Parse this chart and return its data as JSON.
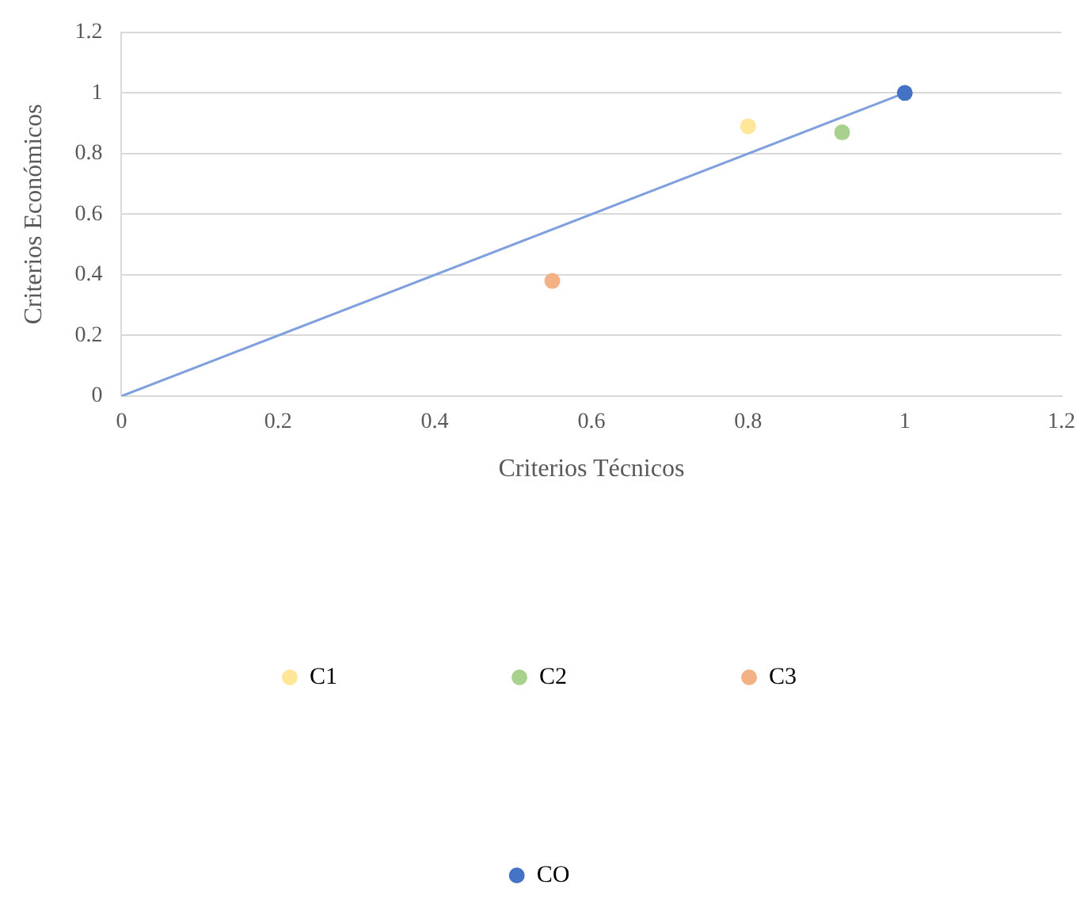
{
  "chart_data": {
    "type": "scatter",
    "xlabel": "Criterios Técnicos",
    "ylabel": "Criterios Económicos",
    "xlim": [
      0,
      1.2
    ],
    "xticks": [
      0,
      0.2,
      0.4,
      0.6,
      0.8,
      1,
      1.2
    ],
    "ylim": [
      0,
      1.2
    ],
    "yticks": [
      0,
      0.2,
      0.4,
      0.6,
      0.8,
      1,
      1.2
    ],
    "grid": "y",
    "legend": "bottom",
    "marker": "circle",
    "series": [
      {
        "name": "C1",
        "color": "#ffe699",
        "x": [
          0.8
        ],
        "values": [
          0.89
        ]
      },
      {
        "name": "C2",
        "color": "#a9d18e",
        "x": [
          0.92
        ],
        "values": [
          0.87
        ]
      },
      {
        "name": "C3",
        "color": "#f4b183",
        "x": [
          0.55
        ],
        "values": [
          0.38
        ]
      },
      {
        "name": "CO",
        "color": "#4472c4",
        "x": [
          1
        ],
        "values": [
          1
        ]
      },
      {
        "type": "line",
        "color": "#7f9fde",
        "x": [
          0,
          1
        ],
        "values": [
          0,
          1
        ],
        "marker": "none"
      }
    ]
  }
}
